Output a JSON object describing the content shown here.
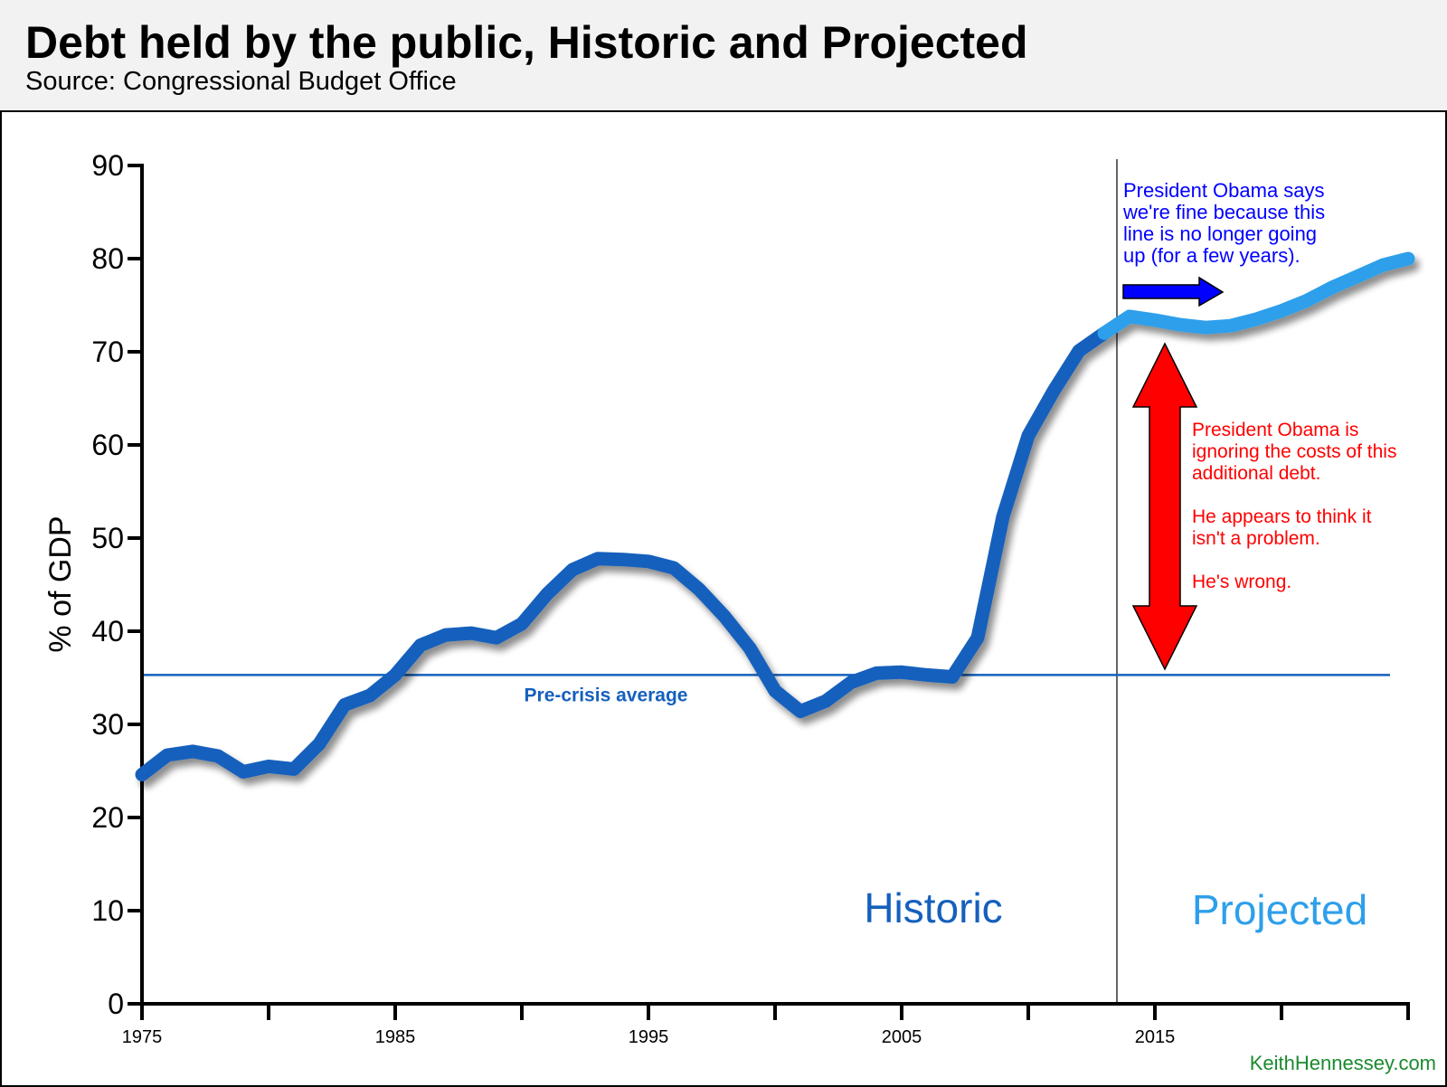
{
  "title": "Debt held by the public, Historic and Projected",
  "subtitle": "Source: Congressional Budget Office",
  "watermark": "KeithHennessey.com",
  "colors": {
    "historic": "#1560bd",
    "projected": "#2e9fea",
    "average": "#1560bd",
    "blue_note": "#0000ff",
    "red_note": "#ff0000",
    "watermark": "#1a8a2e"
  },
  "chart_data": {
    "type": "line",
    "ylabel": "% of GDP",
    "xlabel": "",
    "xlim": [
      1975,
      2025
    ],
    "ylim": [
      0,
      90
    ],
    "y_ticks": [
      0,
      10,
      20,
      30,
      40,
      50,
      60,
      70,
      80,
      90
    ],
    "x_tick_labels": [
      1975,
      1985,
      1995,
      2005,
      2015
    ],
    "x_minor_ticks": [
      1975,
      1980,
      1985,
      1990,
      1995,
      2000,
      2005,
      2010,
      2015,
      2020,
      2025
    ],
    "grid": false,
    "region_divider_x": 2013.5,
    "region_labels": {
      "historic": "Historic",
      "projected": "Projected"
    },
    "reference_line": {
      "label": "Pre-crisis average",
      "value": 35.3
    },
    "series": [
      {
        "x": [
          1975,
          1976,
          1977,
          1978,
          1979,
          1980,
          1981,
          1982,
          1983,
          1984,
          1985,
          1986,
          1987,
          1988,
          1989,
          1990,
          1991,
          1992,
          1993,
          1994,
          1995,
          1996,
          1997,
          1998,
          1999,
          2000,
          2001,
          2002,
          2003,
          2004,
          2005,
          2006,
          2007,
          2008,
          2009,
          2010,
          2011,
          2012,
          2013
        ],
        "values": [
          24.6,
          26.7,
          27.1,
          26.6,
          24.9,
          25.5,
          25.2,
          27.9,
          32.1,
          33.1,
          35.3,
          38.5,
          39.6,
          39.8,
          39.3,
          40.8,
          44.0,
          46.6,
          47.8,
          47.7,
          47.5,
          46.8,
          44.5,
          41.6,
          38.2,
          33.6,
          31.4,
          32.5,
          34.5,
          35.5,
          35.6,
          35.3,
          35.1,
          39.3,
          52.3,
          61.0,
          65.8,
          70.1,
          72.0
        ]
      },
      {
        "x": [
          2013,
          2014,
          2015,
          2016,
          2017,
          2018,
          2019,
          2020,
          2021,
          2022,
          2023,
          2024,
          2025
        ],
        "values": [
          72.0,
          73.8,
          73.4,
          72.9,
          72.6,
          72.8,
          73.5,
          74.4,
          75.5,
          76.9,
          78.1,
          79.3,
          80.0
        ]
      }
    ]
  },
  "annotations": {
    "blue_note": [
      "President Obama says",
      "we're fine because this",
      "line is no longer going",
      "up (for a few years)."
    ],
    "red_note_1": [
      "President Obama is",
      "ignoring the costs of this",
      "additional debt."
    ],
    "red_note_2": [
      "He appears to think it",
      "isn't a problem."
    ],
    "red_note_3": [
      "He's wrong."
    ]
  }
}
